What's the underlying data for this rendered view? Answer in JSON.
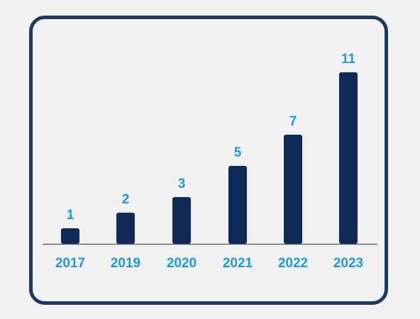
{
  "colors": {
    "background": "#f1f1f2",
    "frame_border": "#1e3a5f",
    "bar": "#0f2a57",
    "label": "#1a9ad9",
    "axis": "#555555"
  },
  "chart_data": {
    "type": "bar",
    "categories": [
      "2017",
      "2019",
      "2020",
      "2021",
      "2022",
      "2023"
    ],
    "values": [
      1,
      2,
      3,
      5,
      7,
      11
    ],
    "data_labels": [
      "1",
      "2",
      "3",
      "5",
      "7",
      "11"
    ],
    "title": "",
    "xlabel": "",
    "ylabel": "",
    "ylim": [
      0,
      11
    ],
    "grid": false,
    "legend": "none"
  }
}
